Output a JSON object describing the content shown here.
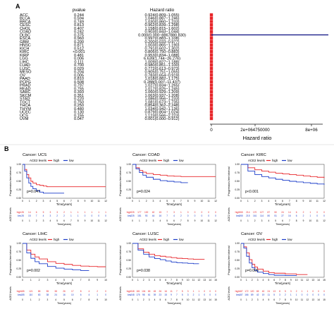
{
  "panels": {
    "a": "A",
    "b": "B"
  },
  "forest": {
    "headers": {
      "pvalue": "pvalue",
      "hazard_ratio": "Hazard ratio"
    },
    "x_label": "Hazard ratio",
    "x_ticks": [
      "0",
      "2e+064750000",
      "8e+06"
    ],
    "colors": {
      "point": "#e8262a",
      "line": "#1b1f8a"
    }
  },
  "km_common": {
    "legend_title": "ACE2 levels",
    "legend_high": "high",
    "legend_low": "low",
    "y_label": "Progression-free interval",
    "x_label": "Time(years)",
    "risk_label": "ACE2 levels",
    "risk_high": "high",
    "risk_low": "low",
    "colors": {
      "high": "#e8262a",
      "low": "#1b3cc9"
    }
  },
  "chart_data": [
    {
      "type": "forest",
      "columns": [
        "pvalue",
        "Hazard ratio"
      ],
      "rows": [
        {
          "cancer": "ACC",
          "pvalue": "0.244",
          "hr": "0.924(0.809−1.055)",
          "hr_value": 0.924
        },
        {
          "cancer": "BLCA",
          "pvalue": "0.594",
          "hr": "1.046(0.887−1.246)",
          "hr_value": 1.046
        },
        {
          "cancer": "BRCA",
          "pvalue": "0.749",
          "hr": "1.030(0.860−1.233)",
          "hr_value": 1.03
        },
        {
          "cancer": "CESC",
          "pvalue": "0.813",
          "hr": "0.962(0.839−1.298)",
          "hr_value": 0.962
        },
        {
          "cancer": "CHOL",
          "pvalue": "0.407",
          "hr": "1.158(0.815−1.602)",
          "hr_value": 1.158
        },
        {
          "cancer": "COAD",
          "pvalue": "0.242",
          "hr": "0.903(0.843−1.044)",
          "hr_value": 0.903
        },
        {
          "cancer": "DLBC",
          "pvalue": "0.375",
          "hr": "0.000(0.000−8867880.830)",
          "hr_value": 0.0
        },
        {
          "cancer": "ESCA",
          "pvalue": "0.960",
          "hr": "0.997(0.883−1.108)",
          "hr_value": 0.997
        },
        {
          "cancer": "GBM",
          "pvalue": "0.200",
          "hr": "0.200(0.033−0.977)",
          "hr_value": 0.2
        },
        {
          "cancer": "HNSC",
          "pvalue": "0.871",
          "hr": "1.003(0.865−1.190)",
          "hr_value": 1.003
        },
        {
          "cancer": "KICH",
          "pvalue": "0.512",
          "hr": "0.791(0.602−1.302)",
          "hr_value": 0.791
        },
        {
          "cancer": "KIRC",
          "pvalue": "<0.001",
          "hr": "0.806(0.750−0.883)",
          "hr_value": 0.806
        },
        {
          "cancer": "KIRP",
          "pvalue": "0.481",
          "hr": "0.953(0.834−1.088)",
          "hr_value": 0.953
        },
        {
          "cancer": "LGG",
          "pvalue": "0.006",
          "hr": "6.639(1.744−26.276)",
          "hr_value": 6.639
        },
        {
          "cancer": "LIHC",
          "pvalue": "0.111",
          "hr": "1.009(0.827−1.188)",
          "hr_value": 1.009
        },
        {
          "cancer": "LUAD",
          "pvalue": "0.700",
          "hr": "0.980(0.851−1.100)",
          "hr_value": 0.98
        },
        {
          "cancer": "LUSC",
          "pvalue": "0.029",
          "hr": "0.772(0.613−0.973)",
          "hr_value": 0.772
        },
        {
          "cancer": "MESO",
          "pvalue": "0.204",
          "hr": "0.905(0.751−1.055)",
          "hr_value": 0.905
        },
        {
          "cancer": "OV",
          "pvalue": "0.005",
          "hr": "0.783(0.654−0.919)",
          "hr_value": 0.783
        },
        {
          "cancer": "PAAD",
          "pvalue": "0.810",
          "hr": "1.018(0.882−1.175)",
          "hr_value": 1.018
        },
        {
          "cancer": "PCPG",
          "pvalue": "0.508",
          "hr": "0.288(0.007−11.437)",
          "hr_value": 0.288
        },
        {
          "cancer": "PRAD",
          "pvalue": "0.797",
          "hr": "1.027(0.834−1.265)",
          "hr_value": 1.027
        },
        {
          "cancer": "READ",
          "pvalue": "0.755",
          "hr": "1.017(0.825−1.245)",
          "hr_value": 1.017
        },
        {
          "cancer": "SARC",
          "pvalue": "0.393",
          "hr": "1.060(0.929−1.209)",
          "hr_value": 1.06
        },
        {
          "cancer": "SKCM",
          "pvalue": "0.351",
          "hr": "1.063(0.937−1.208)",
          "hr_value": 1.063
        },
        {
          "cancer": "STAD",
          "pvalue": "0.220",
          "hr": "1.086(0.956−1.233)",
          "hr_value": 1.086
        },
        {
          "cancer": "TGCT",
          "pvalue": "0.750",
          "hr": "1.081(0.673−1.735)",
          "hr_value": 1.081
        },
        {
          "cancer": "THCA",
          "pvalue": "0.250",
          "hr": "0.854(0.362−2.248)",
          "hr_value": 0.854
        },
        {
          "cancer": "THYM",
          "pvalue": "0.480",
          "hr": "1.034(0.942−1.136)",
          "hr_value": 1.034
        },
        {
          "cancer": "UCEC",
          "pvalue": "0.130",
          "hr": "0.879(0.804−1.024)",
          "hr_value": 0.879
        },
        {
          "cancer": "UCS",
          "pvalue": "0.155",
          "hr": "1.123(0.566−2.223)",
          "hr_value": 1.123
        },
        {
          "cancer": "UVM",
          "pvalue": "0.047",
          "hr": "0.001(0.000−0.912)",
          "hr_value": 0.001
        }
      ],
      "x_ticks": [
        "0",
        "2e+064750000",
        "8e+06"
      ],
      "xlabel": "Hazard ratio"
    },
    {
      "type": "line",
      "title": "Cancer: UCS",
      "pvalue_label": "p=0.047",
      "x_ticks": [
        "0",
        "1",
        "2",
        "3",
        "4",
        "5",
        "6",
        "7",
        "8",
        "9",
        "10",
        "11",
        "12"
      ],
      "y_ticks": [
        "0.00",
        "0.25",
        "0.50",
        "0.75",
        "1.00"
      ],
      "xlim": [
        0,
        12
      ],
      "ylim": [
        0,
        1
      ],
      "series": [
        {
          "name": "high",
          "x": [
            0,
            0.3,
            0.6,
            0.9,
            1.2,
            1.5,
            2.0,
            2.5,
            3.0,
            3.5,
            4.0,
            12.0
          ],
          "y": [
            1,
            0.85,
            0.7,
            0.6,
            0.5,
            0.45,
            0.4,
            0.38,
            0.36,
            0.34,
            0.34,
            0.34
          ]
        },
        {
          "name": "low",
          "x": [
            0,
            0.3,
            0.6,
            0.9,
            1.2,
            1.5,
            2.0,
            2.5,
            3.0,
            4.0,
            5.0,
            6.0
          ],
          "y": [
            1,
            0.8,
            0.6,
            0.45,
            0.35,
            0.28,
            0.22,
            0.18,
            0.15,
            0.15,
            0.15,
            0.15
          ]
        }
      ],
      "risk_rows": [
        {
          "name": "high",
          "values": [
            "28",
            "14",
            "6",
            "5",
            "3",
            "3",
            "2",
            "1",
            "1",
            "1",
            "1",
            "1",
            "1"
          ]
        },
        {
          "name": "low",
          "values": [
            "28",
            "15",
            "7",
            "4",
            "3",
            "2",
            "2",
            "1",
            "1",
            "0",
            "0",
            "0",
            "0"
          ]
        }
      ]
    },
    {
      "type": "line",
      "title": "Cancer: COAD",
      "pvalue_label": "p=0.024",
      "x_ticks": [
        "0",
        "1",
        "2",
        "3",
        "4",
        "5",
        "6",
        "7",
        "8",
        "9",
        "10",
        "11",
        "12"
      ],
      "y_ticks": [
        "0.00",
        "0.25",
        "0.50",
        "0.75",
        "1.00"
      ],
      "xlim": [
        0,
        12
      ],
      "ylim": [
        0,
        1
      ],
      "series": [
        {
          "name": "high",
          "x": [
            0,
            0.5,
            1,
            1.5,
            2,
            3,
            4,
            5,
            6,
            7,
            8,
            9,
            10,
            12
          ],
          "y": [
            1,
            0.9,
            0.82,
            0.77,
            0.73,
            0.7,
            0.68,
            0.66,
            0.65,
            0.64,
            0.64,
            0.64,
            0.64,
            0.64
          ]
        },
        {
          "name": "low",
          "x": [
            0,
            0.5,
            1,
            1.5,
            2,
            3,
            4,
            5,
            6,
            7,
            8
          ],
          "y": [
            1,
            0.87,
            0.76,
            0.68,
            0.62,
            0.56,
            0.52,
            0.5,
            0.48,
            0.46,
            0.46
          ]
        }
      ],
      "risk_rows": [
        {
          "name": "high",
          "values": [
            "225",
            "177",
            "100",
            "40",
            "15",
            "7",
            "3",
            "1",
            "0",
            "0",
            "0",
            "0",
            "0"
          ]
        },
        {
          "name": "low",
          "values": [
            "225",
            "181",
            "93",
            "44",
            "16",
            "7",
            "4",
            "2",
            "0",
            "0",
            "0",
            "0",
            "0"
          ]
        }
      ]
    },
    {
      "type": "line",
      "title": "Cancer: KIRC",
      "pvalue_label": "p<0.001",
      "x_ticks": [
        "0",
        "1",
        "2",
        "3",
        "4",
        "5",
        "6",
        "7",
        "8",
        "9",
        "10",
        "11",
        "12"
      ],
      "y_ticks": [
        "0.00",
        "0.25",
        "0.50",
        "0.75",
        "1.00"
      ],
      "xlim": [
        0,
        12
      ],
      "ylim": [
        0,
        1
      ],
      "series": [
        {
          "name": "high",
          "x": [
            0,
            1,
            2,
            3,
            4,
            5,
            6,
            7,
            8,
            9,
            10,
            11,
            12
          ],
          "y": [
            1,
            0.9,
            0.84,
            0.8,
            0.77,
            0.74,
            0.72,
            0.7,
            0.68,
            0.66,
            0.64,
            0.62,
            0.6
          ]
        },
        {
          "name": "low",
          "x": [
            0,
            1,
            2,
            3,
            4,
            5,
            6,
            7,
            8,
            9,
            10,
            11,
            12
          ],
          "y": [
            1,
            0.8,
            0.7,
            0.64,
            0.6,
            0.56,
            0.53,
            0.5,
            0.48,
            0.46,
            0.44,
            0.42,
            0.4
          ]
        }
      ],
      "risk_rows": [
        {
          "name": "high",
          "values": [
            "265",
            "214",
            "170",
            "127",
            "87",
            "50",
            "24",
            "14",
            "6",
            "2",
            "1",
            "0",
            "0"
          ]
        },
        {
          "name": "low",
          "values": [
            "265",
            "215",
            "161",
            "114",
            "80",
            "51",
            "27",
            "16",
            "6",
            "2",
            "1",
            "0",
            "0"
          ]
        }
      ]
    },
    {
      "type": "line",
      "title": "Cancer: LIHC",
      "pvalue_label": "p=0.002",
      "x_ticks": [
        "0",
        "1",
        "2",
        "3",
        "4",
        "5",
        "6",
        "7",
        "8",
        "9",
        "10"
      ],
      "y_ticks": [
        "0.00",
        "0.25",
        "0.50",
        "0.75",
        "1.00"
      ],
      "xlim": [
        0,
        10
      ],
      "ylim": [
        0,
        1
      ],
      "series": [
        {
          "name": "high",
          "x": [
            0,
            0.5,
            1,
            1.5,
            2,
            3,
            4,
            5,
            6,
            7,
            8,
            9,
            10
          ],
          "y": [
            1,
            0.8,
            0.68,
            0.6,
            0.54,
            0.46,
            0.41,
            0.38,
            0.35,
            0.33,
            0.32,
            0.31,
            0.31
          ]
        },
        {
          "name": "low",
          "x": [
            0,
            0.5,
            1,
            1.5,
            2,
            3,
            4,
            5,
            6,
            7,
            8
          ],
          "y": [
            1,
            0.72,
            0.56,
            0.46,
            0.4,
            0.32,
            0.27,
            0.24,
            0.22,
            0.2,
            0.2
          ]
        }
      ],
      "risk_rows": [
        {
          "name": "high",
          "values": [
            "185",
            "121",
            "85",
            "55",
            "38",
            "26",
            "17",
            "8",
            "4",
            "2",
            "0"
          ]
        },
        {
          "name": "low",
          "values": [
            "185",
            "110",
            "63",
            "38",
            "24",
            "16",
            "10",
            "6",
            "4",
            "1",
            "0"
          ]
        }
      ]
    },
    {
      "type": "line",
      "title": "Cancer: LUSC",
      "pvalue_label": "p=0.038",
      "x_ticks": [
        "0",
        "1",
        "2",
        "3",
        "4",
        "5",
        "6",
        "7",
        "8",
        "9",
        "10",
        "11",
        "12",
        "13",
        "14",
        "15"
      ],
      "y_ticks": [
        "0.00",
        "0.25",
        "0.50",
        "0.75",
        "1.00"
      ],
      "xlim": [
        0,
        15
      ],
      "ylim": [
        0,
        1
      ],
      "series": [
        {
          "name": "high",
          "x": [
            0,
            1,
            2,
            3,
            4,
            5,
            6,
            7,
            8,
            9,
            10,
            11,
            12,
            13
          ],
          "y": [
            1,
            0.84,
            0.74,
            0.68,
            0.64,
            0.62,
            0.6,
            0.58,
            0.56,
            0.55,
            0.54,
            0.53,
            0.53,
            0.53
          ]
        },
        {
          "name": "low",
          "x": [
            0,
            1,
            2,
            3,
            4,
            5,
            6,
            7,
            8,
            9,
            10,
            11,
            12
          ],
          "y": [
            1,
            0.8,
            0.68,
            0.6,
            0.55,
            0.52,
            0.48,
            0.45,
            0.43,
            0.42,
            0.41,
            0.4,
            0.4
          ]
        }
      ],
      "risk_rows": [
        {
          "name": "high",
          "values": [
            "248",
            "181",
            "104",
            "65",
            "45",
            "26",
            "16",
            "11",
            "7",
            "5",
            "3",
            "1",
            "1",
            "0",
            "0",
            "0"
          ]
        },
        {
          "name": "low",
          "values": [
            "248",
            "175",
            "98",
            "61",
            "39",
            "23",
            "15",
            "9",
            "7",
            "5",
            "3",
            "2",
            "1",
            "0",
            "0",
            "0"
          ]
        }
      ]
    },
    {
      "type": "line",
      "title": "Cancer: OV",
      "pvalue_label": "p=0.005",
      "x_ticks": [
        "0",
        "1",
        "2",
        "3",
        "4",
        "5",
        "6",
        "7",
        "8",
        "9",
        "10",
        "11",
        "12",
        "13",
        "14",
        "15"
      ],
      "y_ticks": [
        "0.00",
        "0.25",
        "0.50",
        "0.75",
        "1.00"
      ],
      "xlim": [
        0,
        15
      ],
      "ylim": [
        0,
        1
      ],
      "series": [
        {
          "name": "high",
          "x": [
            0,
            0.5,
            1,
            1.5,
            2,
            2.5,
            3,
            4,
            5,
            6,
            8,
            10,
            12
          ],
          "y": [
            1,
            0.9,
            0.72,
            0.52,
            0.38,
            0.3,
            0.24,
            0.18,
            0.14,
            0.12,
            0.1,
            0.08,
            0.08
          ]
        },
        {
          "name": "low",
          "x": [
            0,
            0.5,
            1,
            1.5,
            2,
            2.5,
            3,
            4,
            5,
            6,
            8,
            10
          ],
          "y": [
            1,
            0.86,
            0.62,
            0.42,
            0.28,
            0.2,
            0.15,
            0.11,
            0.08,
            0.06,
            0.05,
            0.04
          ]
        }
      ],
      "risk_rows": [
        {
          "name": "high",
          "values": [
            "187",
            "172",
            "120",
            "65",
            "40",
            "24",
            "13",
            "8",
            "5",
            "3",
            "2",
            "1",
            "1",
            "0",
            "0",
            "0"
          ]
        },
        {
          "name": "low",
          "values": [
            "187",
            "166",
            "89",
            "42",
            "19",
            "11",
            "5",
            "3",
            "2",
            "1",
            "1",
            "0",
            "0",
            "0",
            "0",
            "0"
          ]
        }
      ]
    }
  ]
}
